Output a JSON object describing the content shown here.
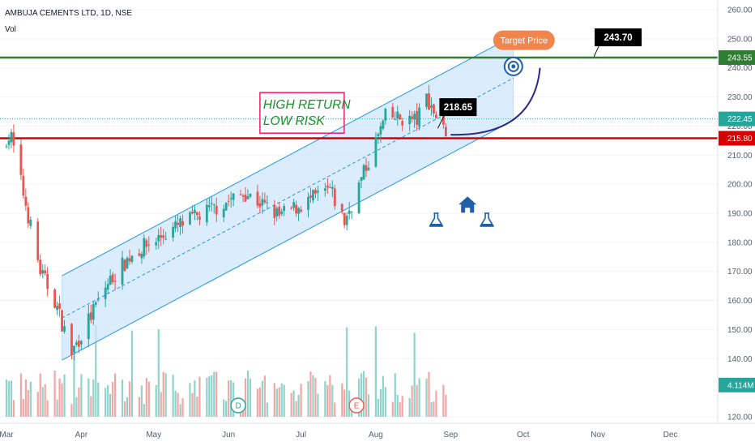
{
  "header": {
    "title": "AMBUJA CEMENTS LTD, 1D, NSE",
    "volume_label": "Vol"
  },
  "colors": {
    "up": "#26a69a",
    "down": "#ef5350",
    "channel_fill": "#cfe5fb",
    "channel_line": "#2196f3",
    "target_line": "#2e7d32",
    "support_line": "#d50000",
    "target_bubble": "#f0864e",
    "icon_blue": "#1e5fa8"
  },
  "chart_data": {
    "type": "candlestick",
    "title": "AMBUJA CEMENTS LTD, 1D, NSE",
    "interval": "1D",
    "exchange": "NSE",
    "y_axis": {
      "ticks": [
        "260.00",
        "250.00",
        "240.00",
        "230.00",
        "220.00",
        "210.00",
        "200.00",
        "190.00",
        "180.00",
        "170.00",
        "160.00",
        "150.00",
        "140.00",
        "120.00"
      ],
      "range": [
        120,
        262
      ]
    },
    "x_axis": {
      "ticks": [
        "Mar",
        "Apr",
        "May",
        "Jun",
        "Jul",
        "Aug",
        "Sep",
        "Oct",
        "Nov",
        "Dec"
      ],
      "first_date": "2022-03-01",
      "last_date": "2022-12-31"
    },
    "price_tags": [
      {
        "name": "target",
        "value": "243.55"
      },
      {
        "name": "last",
        "value": "222.45"
      },
      {
        "name": "support",
        "value": "215.80"
      },
      {
        "name": "volume",
        "value": "4.114M"
      }
    ],
    "horizontal_lines": [
      {
        "name": "target-line",
        "price": 243.55
      },
      {
        "name": "support-line",
        "price": 215.8
      }
    ],
    "channel": {
      "start_date": "2022-03-24",
      "end_date": "2022-09-27",
      "upper": [
        168.5,
        251
      ],
      "lower": [
        139.5,
        222
      ],
      "mid": [
        154,
        236.5
      ]
    },
    "projection_arc": {
      "start_date": "2022-09-01",
      "start_price": 217,
      "end_date": "2022-10-08",
      "end_price": 240
    },
    "annotations": [
      {
        "name": "high-return",
        "lines": [
          "HIGH RETURN",
          "LOW RISK"
        ]
      },
      {
        "name": "target-bubble",
        "text": "Target Price"
      },
      {
        "name": "callout-target",
        "text": "243.70"
      },
      {
        "name": "callout-current",
        "text": "218.65"
      }
    ],
    "events": [
      {
        "letter": "D",
        "date": "2022-06-05"
      },
      {
        "letter": "E",
        "date": "2022-07-24"
      }
    ],
    "key_points": [
      {
        "date": "2022-03-03",
        "close": 216
      },
      {
        "date": "2022-03-15",
        "close": 170
      },
      {
        "date": "2022-03-21",
        "close": 160
      },
      {
        "date": "2022-03-28",
        "close": 142
      },
      {
        "date": "2022-04-12",
        "close": 166
      },
      {
        "date": "2022-04-22",
        "close": 176
      },
      {
        "date": "2022-05-12",
        "close": 186
      },
      {
        "date": "2022-06-08",
        "close": 197
      },
      {
        "date": "2022-06-22",
        "close": 189
      },
      {
        "date": "2022-07-13",
        "close": 198
      },
      {
        "date": "2022-07-19",
        "close": 187
      },
      {
        "date": "2022-07-29",
        "close": 208
      },
      {
        "date": "2022-08-05",
        "close": 223
      },
      {
        "date": "2022-08-18",
        "close": 222
      },
      {
        "date": "2022-08-22",
        "close": 230
      },
      {
        "date": "2022-08-29",
        "close": 218.65
      }
    ],
    "volume_scale_max": 5
  }
}
